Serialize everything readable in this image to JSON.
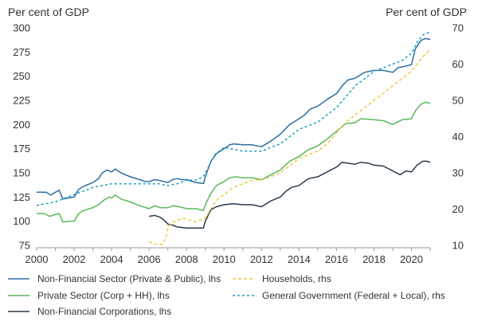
{
  "chart_data": {
    "type": "line",
    "left_axis_unit": "Per cent of GDP",
    "right_axis_unit": "Per cent of GDP",
    "x_ticks": [
      "2000",
      "2002",
      "2004",
      "2006",
      "2008",
      "2010",
      "2012",
      "2014",
      "2016",
      "2018",
      "2020"
    ],
    "xlim": [
      2000,
      2021
    ],
    "ylim_left": [
      75,
      300
    ],
    "ylim_right": [
      10,
      70
    ],
    "left_ticks": [
      75,
      100,
      125,
      150,
      175,
      200,
      225,
      250,
      275,
      300
    ],
    "right_ticks": [
      10,
      20,
      30,
      40,
      50,
      60,
      70
    ],
    "grid": false,
    "legend_position": "bottom",
    "series": [
      {
        "name": "Non-Financial Sector (Private & Public), lhs",
        "axis": "left",
        "color": "#2e6da4",
        "dash": "solid",
        "points": [
          [
            2000,
            130
          ],
          [
            2000.5,
            130
          ],
          [
            2000.75,
            127
          ],
          [
            2001,
            130
          ],
          [
            2001.2,
            132
          ],
          [
            2001.4,
            123
          ],
          [
            2001.7,
            124
          ],
          [
            2002,
            125
          ],
          [
            2002.25,
            133
          ],
          [
            2002.5,
            136
          ],
          [
            2003,
            140
          ],
          [
            2003.3,
            144
          ],
          [
            2003.5,
            150
          ],
          [
            2003.75,
            153
          ],
          [
            2004,
            151
          ],
          [
            2004.2,
            154
          ],
          [
            2004.5,
            150
          ],
          [
            2005,
            146
          ],
          [
            2005.5,
            143
          ],
          [
            2005.8,
            141
          ],
          [
            2006,
            141
          ],
          [
            2006.3,
            143
          ],
          [
            2006.6,
            142
          ],
          [
            2007,
            140
          ],
          [
            2007.25,
            143
          ],
          [
            2007.5,
            144
          ],
          [
            2007.75,
            143
          ],
          [
            2008,
            143
          ],
          [
            2008.5,
            140
          ],
          [
            2008.9,
            139
          ],
          [
            2009,
            146
          ],
          [
            2009.3,
            162
          ],
          [
            2009.6,
            170
          ],
          [
            2010,
            175
          ],
          [
            2010.3,
            179
          ],
          [
            2010.5,
            180
          ],
          [
            2011,
            179
          ],
          [
            2011.5,
            179
          ],
          [
            2012,
            177
          ],
          [
            2012.5,
            183
          ],
          [
            2013,
            190
          ],
          [
            2013.5,
            200
          ],
          [
            2014,
            206
          ],
          [
            2014.3,
            210
          ],
          [
            2014.6,
            216
          ],
          [
            2015,
            219
          ],
          [
            2015.5,
            226
          ],
          [
            2016,
            232
          ],
          [
            2016.3,
            240
          ],
          [
            2016.6,
            246
          ],
          [
            2017,
            248
          ],
          [
            2017.5,
            254
          ],
          [
            2018,
            256
          ],
          [
            2018.5,
            256
          ],
          [
            2019,
            254
          ],
          [
            2019.3,
            259
          ],
          [
            2019.6,
            260
          ],
          [
            2020,
            262
          ],
          [
            2020.2,
            278
          ],
          [
            2020.5,
            287
          ],
          [
            2020.75,
            289
          ],
          [
            2021,
            288
          ]
        ]
      },
      {
        "name": "Private Sector (Corp + HH), lhs",
        "axis": "left",
        "color": "#5cb85c",
        "dash": "solid",
        "points": [
          [
            2000,
            108
          ],
          [
            2000.4,
            108
          ],
          [
            2000.7,
            105
          ],
          [
            2001,
            107
          ],
          [
            2001.2,
            108
          ],
          [
            2001.4,
            99
          ],
          [
            2001.7,
            100
          ],
          [
            2002,
            100
          ],
          [
            2002.25,
            108
          ],
          [
            2002.5,
            111
          ],
          [
            2003,
            114
          ],
          [
            2003.3,
            117
          ],
          [
            2003.6,
            122
          ],
          [
            2003.9,
            125
          ],
          [
            2004,
            124
          ],
          [
            2004.2,
            127
          ],
          [
            2004.5,
            123
          ],
          [
            2005,
            120
          ],
          [
            2005.5,
            116
          ],
          [
            2006,
            113
          ],
          [
            2006.3,
            116
          ],
          [
            2006.6,
            114
          ],
          [
            2007,
            114
          ],
          [
            2007.3,
            116
          ],
          [
            2007.6,
            115
          ],
          [
            2008,
            113
          ],
          [
            2008.5,
            113
          ],
          [
            2008.9,
            111
          ],
          [
            2009,
            117
          ],
          [
            2009.3,
            129
          ],
          [
            2009.6,
            137
          ],
          [
            2010,
            141
          ],
          [
            2010.3,
            145
          ],
          [
            2010.6,
            146
          ],
          [
            2011,
            145
          ],
          [
            2011.5,
            145
          ],
          [
            2012,
            143
          ],
          [
            2012.5,
            148
          ],
          [
            2013,
            153
          ],
          [
            2013.5,
            162
          ],
          [
            2014,
            167
          ],
          [
            2014.5,
            174
          ],
          [
            2015,
            178
          ],
          [
            2015.5,
            185
          ],
          [
            2016,
            193
          ],
          [
            2016.5,
            201
          ],
          [
            2017,
            202
          ],
          [
            2017.3,
            206
          ],
          [
            2018,
            205
          ],
          [
            2018.5,
            204
          ],
          [
            2019,
            200
          ],
          [
            2019.5,
            205
          ],
          [
            2020,
            206
          ],
          [
            2020.2,
            214
          ],
          [
            2020.5,
            221
          ],
          [
            2020.75,
            223
          ],
          [
            2021,
            222
          ]
        ]
      },
      {
        "name": "Non-Financial Corporations, lhs",
        "axis": "left",
        "color": "#2b3a4a",
        "dash": "solid",
        "points": [
          [
            2006,
            105
          ],
          [
            2006.3,
            106
          ],
          [
            2006.6,
            104
          ],
          [
            2006.8,
            101
          ],
          [
            2007,
            97
          ],
          [
            2007.25,
            96
          ],
          [
            2007.5,
            94
          ],
          [
            2008,
            93
          ],
          [
            2008.5,
            93
          ],
          [
            2008.9,
            93
          ],
          [
            2009,
            100
          ],
          [
            2009.3,
            112
          ],
          [
            2009.6,
            115
          ],
          [
            2010,
            117
          ],
          [
            2010.5,
            118
          ],
          [
            2011,
            117
          ],
          [
            2011.5,
            117
          ],
          [
            2012,
            115
          ],
          [
            2012.5,
            121
          ],
          [
            2013,
            125
          ],
          [
            2013.3,
            131
          ],
          [
            2013.6,
            135
          ],
          [
            2014,
            137
          ],
          [
            2014.5,
            144
          ],
          [
            2015,
            146
          ],
          [
            2015.5,
            151
          ],
          [
            2016,
            156
          ],
          [
            2016.3,
            161
          ],
          [
            2016.6,
            160
          ],
          [
            2017,
            159
          ],
          [
            2017.3,
            161
          ],
          [
            2017.7,
            160
          ],
          [
            2018,
            158
          ],
          [
            2018.5,
            157
          ],
          [
            2019,
            152
          ],
          [
            2019.4,
            148
          ],
          [
            2019.7,
            152
          ],
          [
            2020,
            151
          ],
          [
            2020.3,
            158
          ],
          [
            2020.6,
            162
          ],
          [
            2020.8,
            162
          ],
          [
            2021,
            161
          ]
        ]
      },
      {
        "name": "Households, rhs",
        "axis": "right",
        "color": "#f5c842",
        "dash": "dashed",
        "points": [
          [
            2006,
            11
          ],
          [
            2006.3,
            10.3
          ],
          [
            2006.7,
            10.2
          ],
          [
            2006.9,
            12
          ],
          [
            2007,
            15
          ],
          [
            2007.3,
            16.5
          ],
          [
            2007.8,
            17.5
          ],
          [
            2008.5,
            16.5
          ],
          [
            2009,
            17.5
          ],
          [
            2009.4,
            21
          ],
          [
            2009.7,
            23
          ],
          [
            2010,
            24
          ],
          [
            2010.5,
            26
          ],
          [
            2011,
            27
          ],
          [
            2011.5,
            28
          ],
          [
            2012,
            28
          ],
          [
            2012.5,
            29
          ],
          [
            2013,
            30
          ],
          [
            2013.5,
            32
          ],
          [
            2014,
            34
          ],
          [
            2014.5,
            35
          ],
          [
            2015,
            36
          ],
          [
            2015.5,
            38
          ],
          [
            2016,
            41
          ],
          [
            2016.5,
            44
          ],
          [
            2017,
            46
          ],
          [
            2017.5,
            48
          ],
          [
            2018,
            50
          ],
          [
            2018.5,
            52
          ],
          [
            2019,
            54
          ],
          [
            2019.5,
            56
          ],
          [
            2020,
            58
          ],
          [
            2020.3,
            60
          ],
          [
            2020.6,
            62
          ],
          [
            2021,
            64
          ]
        ]
      },
      {
        "name": "General Government (Federal + Local), rhs",
        "axis": "right",
        "color": "#1b9ec2",
        "dash": "dotted",
        "points": [
          [
            2000,
            21
          ],
          [
            2000.5,
            21.5
          ],
          [
            2001,
            22
          ],
          [
            2001.5,
            23
          ],
          [
            2002,
            24
          ],
          [
            2002.5,
            25
          ],
          [
            2003,
            26
          ],
          [
            2003.5,
            26.5
          ],
          [
            2004,
            27
          ],
          [
            2004.5,
            27
          ],
          [
            2005,
            27
          ],
          [
            2005.5,
            27
          ],
          [
            2006,
            27
          ],
          [
            2006.5,
            27
          ],
          [
            2007,
            26.5
          ],
          [
            2007.5,
            27
          ],
          [
            2008,
            28
          ],
          [
            2008.5,
            28
          ],
          [
            2008.9,
            29
          ],
          [
            2009.1,
            31
          ],
          [
            2009.5,
            35
          ],
          [
            2010,
            37
          ],
          [
            2010.5,
            36.5
          ],
          [
            2011,
            36
          ],
          [
            2011.5,
            36
          ],
          [
            2012,
            36
          ],
          [
            2012.5,
            37
          ],
          [
            2013,
            38
          ],
          [
            2013.5,
            40
          ],
          [
            2014,
            42
          ],
          [
            2014.5,
            43
          ],
          [
            2015,
            44
          ],
          [
            2015.5,
            46
          ],
          [
            2016,
            48
          ],
          [
            2016.5,
            51
          ],
          [
            2017,
            54
          ],
          [
            2017.5,
            56
          ],
          [
            2018,
            58
          ],
          [
            2018.5,
            59
          ],
          [
            2019,
            60
          ],
          [
            2019.5,
            61
          ],
          [
            2020,
            63
          ],
          [
            2020.3,
            66
          ],
          [
            2020.6,
            68
          ],
          [
            2021,
            69
          ]
        ]
      }
    ]
  }
}
